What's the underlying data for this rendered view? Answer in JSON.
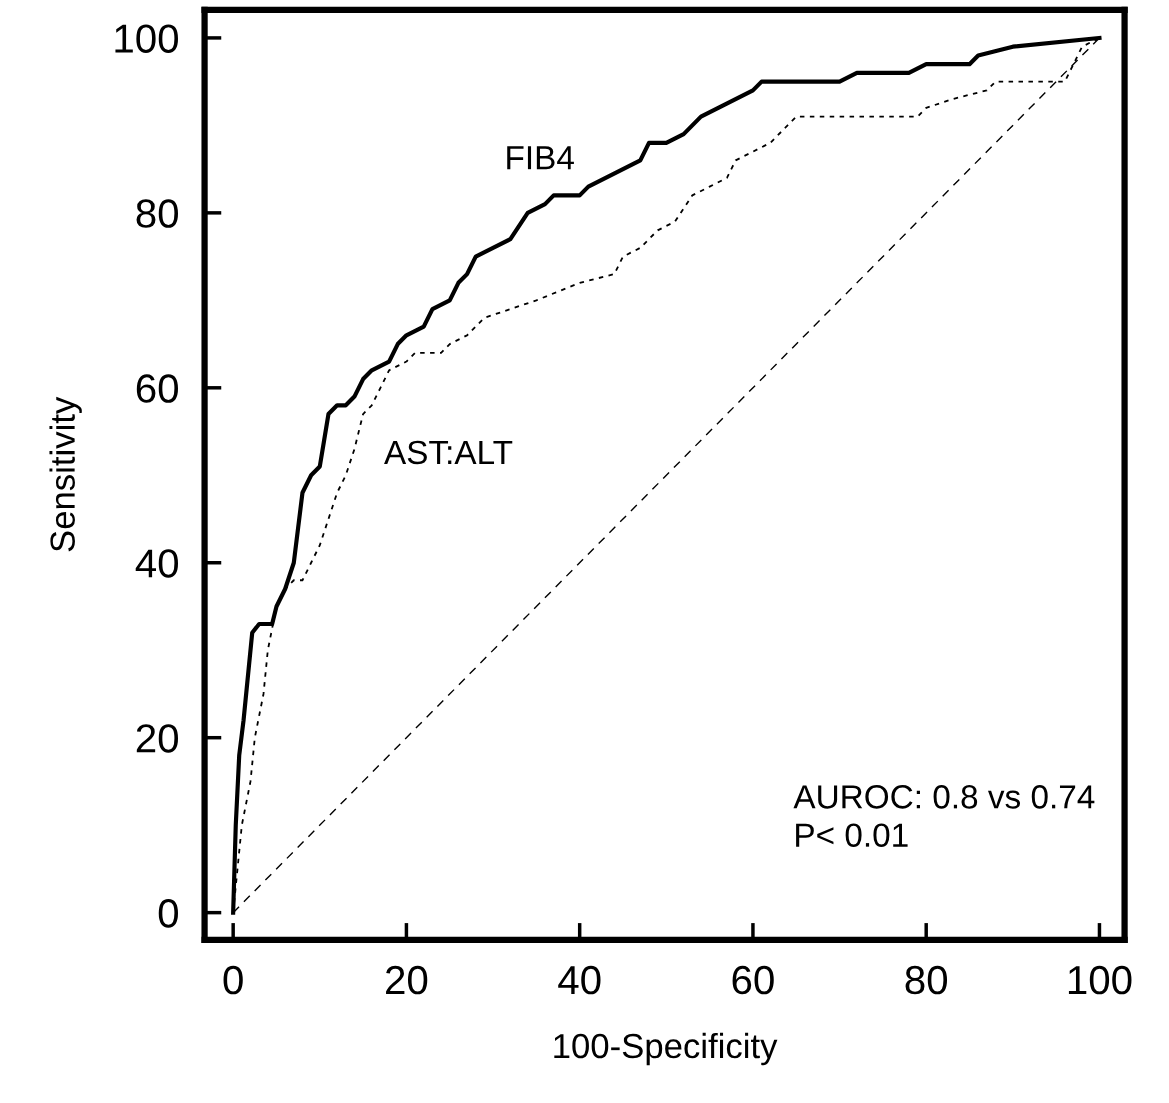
{
  "chart_data": {
    "type": "line",
    "xlabel": "100-Specificity",
    "ylabel": "Sensitivity",
    "xlim": [
      -3.3,
      102.9
    ],
    "ylim": [
      -3.1,
      103.2
    ],
    "xticks": [
      0,
      20,
      40,
      60,
      80,
      100
    ],
    "yticks": [
      0,
      20,
      40,
      60,
      80,
      100
    ],
    "grid": false,
    "legend": false,
    "marker": "none",
    "annotations": [
      "AUROC: 0.8 vs 0.74\nP< 0.01"
    ],
    "series": [
      {
        "name": "FIB4",
        "color": "#000000",
        "line_style": "solid",
        "x": [
          0,
          0.3,
          0.7,
          1.2,
          1.8,
          2.2,
          3,
          4.5,
          5,
          6,
          7,
          7.5,
          8,
          9,
          10,
          10.5,
          11,
          12,
          13,
          14,
          15,
          16,
          18,
          19,
          20,
          22,
          23,
          25,
          26,
          27,
          28,
          30,
          32,
          34,
          36,
          37,
          40,
          41,
          43,
          45,
          47,
          48,
          50,
          52,
          54,
          56,
          58,
          60,
          61,
          70,
          72,
          78,
          80,
          85,
          86,
          90,
          100
        ],
        "values": [
          0,
          10,
          18,
          22,
          28,
          32,
          33,
          33,
          35,
          37,
          40,
          44,
          48,
          50,
          51,
          54,
          57,
          58,
          58,
          59,
          61,
          62,
          63,
          65,
          66,
          67,
          69,
          70,
          72,
          73,
          75,
          76,
          77,
          80,
          81,
          82,
          82,
          83,
          84,
          85,
          86,
          88,
          88,
          89,
          91,
          92,
          93,
          94,
          95,
          95,
          96,
          96,
          97,
          97,
          98,
          99,
          100
        ]
      },
      {
        "name": "AST:ALT",
        "color": "#000000",
        "line_style": "dotted",
        "x": [
          0,
          0.5,
          1,
          2,
          2.5,
          3.5,
          4,
          5,
          6,
          7,
          8,
          9,
          10,
          11,
          12,
          13,
          14,
          15,
          16,
          17,
          18,
          20,
          21,
          24,
          25,
          27,
          29,
          32,
          35,
          40,
          44,
          45,
          47,
          49,
          51,
          53,
          55,
          57,
          58,
          60,
          62,
          64,
          65,
          79,
          80,
          83,
          87,
          88,
          96,
          97,
          98,
          100
        ],
        "values": [
          0,
          5,
          10,
          15,
          20,
          25,
          30,
          35,
          37,
          38,
          38,
          40,
          42,
          45,
          48,
          50,
          53,
          57,
          58,
          60,
          62,
          63,
          64,
          64,
          65,
          66,
          68,
          69,
          70,
          72,
          73,
          75,
          76,
          78,
          79,
          82,
          83,
          84,
          86,
          87,
          88,
          90,
          91,
          91,
          92,
          93,
          94,
          95,
          95,
          97,
          99,
          100
        ]
      },
      {
        "color": "#000000",
        "line_style": "dashed",
        "x": [
          0,
          100
        ],
        "values": [
          0,
          100
        ]
      }
    ]
  }
}
